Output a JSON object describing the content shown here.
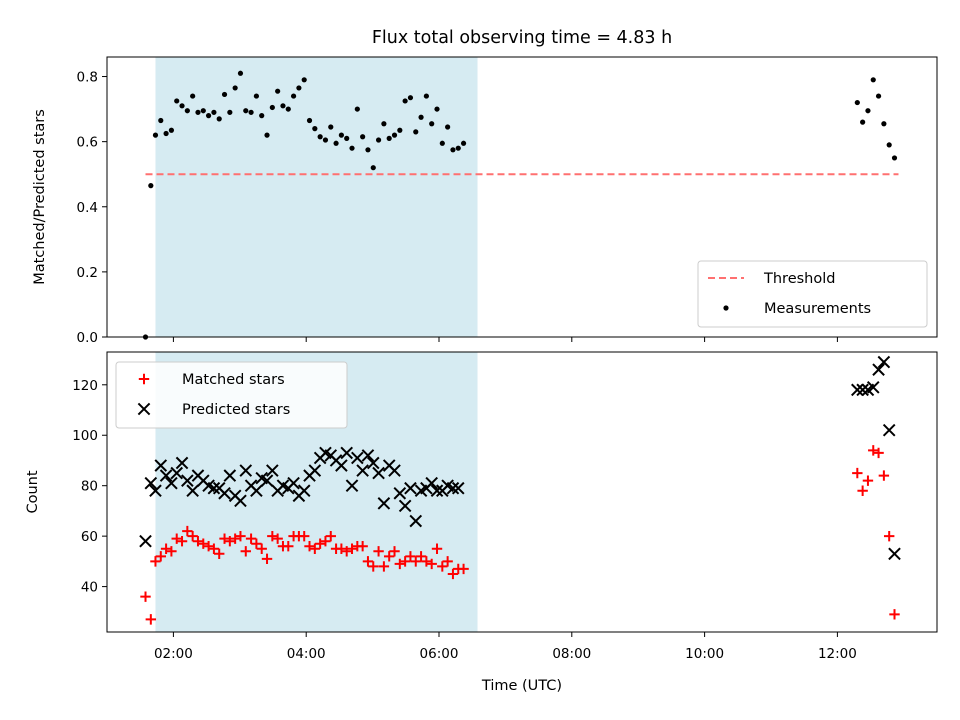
{
  "chart_data": {
    "type": "scatter",
    "title": "Flux total observing time = 4.83 h",
    "xlabel": "Time (UTC)",
    "x_tick_labels": [
      "02:00",
      "04:00",
      "06:00",
      "08:00",
      "10:00",
      "12:00"
    ],
    "x_ticks_hours": [
      2,
      4,
      6,
      8,
      10,
      12
    ],
    "xlim_hours": [
      1.0,
      13.5
    ],
    "shaded_span_hours": [
      1.73,
      6.58
    ],
    "shade_color": "#add8e6",
    "panels": [
      {
        "ylabel": "Matched/Predicted stars",
        "ylim": [
          0,
          0.86
        ],
        "y_ticks": [
          0.0,
          0.2,
          0.4,
          0.6,
          0.8
        ],
        "y_tick_labels": [
          "0.0",
          "0.2",
          "0.4",
          "0.6",
          "0.8"
        ],
        "legend_placement": "lower-right",
        "threshold": {
          "name": "Threshold",
          "value": 0.5,
          "x_range": [
            1.58,
            12.92
          ],
          "color": "#ff7070"
        },
        "series": [
          {
            "name": "Measurements",
            "marker": "dot",
            "color": "#000000",
            "points": [
              [
                1.58,
                0.0
              ],
              [
                1.66,
                0.465
              ],
              [
                1.73,
                0.62
              ],
              [
                1.81,
                0.665
              ],
              [
                1.89,
                0.625
              ],
              [
                1.97,
                0.635
              ],
              [
                2.05,
                0.725
              ],
              [
                2.13,
                0.71
              ],
              [
                2.21,
                0.695
              ],
              [
                2.29,
                0.74
              ],
              [
                2.37,
                0.69
              ],
              [
                2.45,
                0.695
              ],
              [
                2.53,
                0.68
              ],
              [
                2.61,
                0.69
              ],
              [
                2.69,
                0.67
              ],
              [
                2.77,
                0.745
              ],
              [
                2.85,
                0.69
              ],
              [
                2.93,
                0.765
              ],
              [
                3.01,
                0.81
              ],
              [
                3.09,
                0.695
              ],
              [
                3.17,
                0.69
              ],
              [
                3.25,
                0.74
              ],
              [
                3.33,
                0.68
              ],
              [
                3.41,
                0.62
              ],
              [
                3.49,
                0.705
              ],
              [
                3.57,
                0.755
              ],
              [
                3.65,
                0.71
              ],
              [
                3.73,
                0.7
              ],
              [
                3.81,
                0.74
              ],
              [
                3.89,
                0.765
              ],
              [
                3.97,
                0.79
              ],
              [
                4.05,
                0.665
              ],
              [
                4.13,
                0.64
              ],
              [
                4.21,
                0.615
              ],
              [
                4.29,
                0.605
              ],
              [
                4.37,
                0.645
              ],
              [
                4.45,
                0.595
              ],
              [
                4.53,
                0.62
              ],
              [
                4.61,
                0.61
              ],
              [
                4.69,
                0.58
              ],
              [
                4.77,
                0.7
              ],
              [
                4.85,
                0.615
              ],
              [
                4.93,
                0.575
              ],
              [
                5.01,
                0.52
              ],
              [
                5.09,
                0.605
              ],
              [
                5.17,
                0.655
              ],
              [
                5.25,
                0.61
              ],
              [
                5.33,
                0.62
              ],
              [
                5.41,
                0.635
              ],
              [
                5.49,
                0.725
              ],
              [
                5.57,
                0.735
              ],
              [
                5.65,
                0.63
              ],
              [
                5.73,
                0.675
              ],
              [
                5.81,
                0.74
              ],
              [
                5.89,
                0.655
              ],
              [
                5.97,
                0.7
              ],
              [
                6.05,
                0.595
              ],
              [
                6.13,
                0.645
              ],
              [
                6.21,
                0.575
              ],
              [
                6.29,
                0.58
              ],
              [
                6.37,
                0.595
              ],
              [
                12.3,
                0.72
              ],
              [
                12.38,
                0.66
              ],
              [
                12.46,
                0.695
              ],
              [
                12.54,
                0.79
              ],
              [
                12.62,
                0.74
              ],
              [
                12.7,
                0.655
              ],
              [
                12.78,
                0.59
              ],
              [
                12.86,
                0.55
              ]
            ]
          }
        ]
      },
      {
        "ylabel": "Count",
        "ylim": [
          22,
          133
        ],
        "y_ticks": [
          40,
          60,
          80,
          100,
          120
        ],
        "y_tick_labels": [
          "40",
          "60",
          "80",
          "100",
          "120"
        ],
        "legend_placement": "upper-left",
        "series": [
          {
            "name": "Matched stars",
            "marker": "plus",
            "color": "#ff0000",
            "points": [
              [
                1.58,
                36
              ],
              [
                1.66,
                27
              ],
              [
                1.73,
                50
              ],
              [
                1.81,
                52
              ],
              [
                1.89,
                55
              ],
              [
                1.97,
                54
              ],
              [
                2.05,
                59
              ],
              [
                2.13,
                58
              ],
              [
                2.21,
                62
              ],
              [
                2.29,
                60
              ],
              [
                2.37,
                58
              ],
              [
                2.45,
                57
              ],
              [
                2.53,
                56
              ],
              [
                2.61,
                55
              ],
              [
                2.69,
                53
              ],
              [
                2.77,
                59
              ],
              [
                2.85,
                58
              ],
              [
                2.93,
                59
              ],
              [
                3.01,
                60
              ],
              [
                3.09,
                54
              ],
              [
                3.17,
                59
              ],
              [
                3.25,
                57
              ],
              [
                3.33,
                55
              ],
              [
                3.41,
                51
              ],
              [
                3.49,
                60
              ],
              [
                3.57,
                59
              ],
              [
                3.65,
                56
              ],
              [
                3.73,
                56
              ],
              [
                3.81,
                60
              ],
              [
                3.89,
                60
              ],
              [
                3.97,
                60
              ],
              [
                4.05,
                56
              ],
              [
                4.13,
                55
              ],
              [
                4.21,
                57
              ],
              [
                4.29,
                58
              ],
              [
                4.37,
                60
              ],
              [
                4.45,
                55
              ],
              [
                4.53,
                55
              ],
              [
                4.61,
                54
              ],
              [
                4.69,
                55
              ],
              [
                4.77,
                56
              ],
              [
                4.85,
                56
              ],
              [
                4.93,
                50
              ],
              [
                5.01,
                48
              ],
              [
                5.09,
                54
              ],
              [
                5.17,
                48
              ],
              [
                5.25,
                52
              ],
              [
                5.33,
                54
              ],
              [
                5.41,
                49
              ],
              [
                5.49,
                50
              ],
              [
                5.57,
                52
              ],
              [
                5.65,
                50
              ],
              [
                5.73,
                52
              ],
              [
                5.81,
                50
              ],
              [
                5.89,
                49
              ],
              [
                5.97,
                55
              ],
              [
                6.05,
                48
              ],
              [
                6.13,
                50
              ],
              [
                6.21,
                45
              ],
              [
                6.29,
                47
              ],
              [
                6.37,
                47
              ],
              [
                12.3,
                85
              ],
              [
                12.38,
                78
              ],
              [
                12.46,
                82
              ],
              [
                12.54,
                94
              ],
              [
                12.62,
                93
              ],
              [
                12.7,
                84
              ],
              [
                12.78,
                60
              ],
              [
                12.86,
                29
              ]
            ]
          },
          {
            "name": "Predicted stars",
            "marker": "x",
            "color": "#000000",
            "points": [
              [
                1.58,
                58
              ],
              [
                1.66,
                81
              ],
              [
                1.73,
                78
              ],
              [
                1.81,
                88
              ],
              [
                1.89,
                84
              ],
              [
                1.97,
                81
              ],
              [
                2.05,
                85
              ],
              [
                2.13,
                89
              ],
              [
                2.21,
                82
              ],
              [
                2.29,
                78
              ],
              [
                2.37,
                84
              ],
              [
                2.45,
                82
              ],
              [
                2.53,
                80
              ],
              [
                2.61,
                79
              ],
              [
                2.69,
                79
              ],
              [
                2.77,
                77
              ],
              [
                2.85,
                84
              ],
              [
                2.93,
                76
              ],
              [
                3.01,
                74
              ],
              [
                3.09,
                86
              ],
              [
                3.17,
                80
              ],
              [
                3.25,
                78
              ],
              [
                3.33,
                83
              ],
              [
                3.41,
                82
              ],
              [
                3.49,
                86
              ],
              [
                3.57,
                78
              ],
              [
                3.65,
                80
              ],
              [
                3.73,
                79
              ],
              [
                3.81,
                81
              ],
              [
                3.89,
                76
              ],
              [
                3.97,
                78
              ],
              [
                4.05,
                84
              ],
              [
                4.13,
                86
              ],
              [
                4.21,
                91
              ],
              [
                4.29,
                93
              ],
              [
                4.37,
                92
              ],
              [
                4.45,
                90
              ],
              [
                4.53,
                88
              ],
              [
                4.61,
                93
              ],
              [
                4.69,
                80
              ],
              [
                4.77,
                91
              ],
              [
                4.85,
                86
              ],
              [
                4.93,
                92
              ],
              [
                5.01,
                89
              ],
              [
                5.09,
                85
              ],
              [
                5.17,
                73
              ],
              [
                5.25,
                88
              ],
              [
                5.33,
                86
              ],
              [
                5.41,
                77
              ],
              [
                5.49,
                72
              ],
              [
                5.57,
                79
              ],
              [
                5.65,
                66
              ],
              [
                5.73,
                78
              ],
              [
                5.81,
                79
              ],
              [
                5.89,
                81
              ],
              [
                5.97,
                78
              ],
              [
                6.05,
                78
              ],
              [
                6.13,
                80
              ],
              [
                6.21,
                79
              ],
              [
                6.29,
                79
              ],
              [
                12.3,
                118
              ],
              [
                12.38,
                118
              ],
              [
                12.46,
                118
              ],
              [
                12.54,
                119
              ],
              [
                12.62,
                126
              ],
              [
                12.7,
                129
              ],
              [
                12.78,
                102
              ],
              [
                12.86,
                53
              ]
            ]
          }
        ]
      }
    ]
  }
}
